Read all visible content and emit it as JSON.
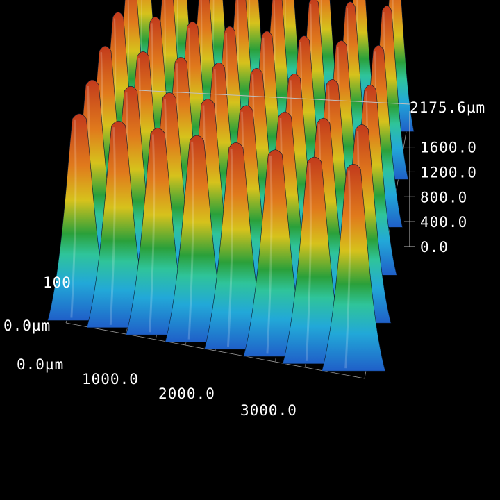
{
  "chart_data": {
    "type": "surface",
    "title": "",
    "z_axis": {
      "max_label": "2175.6µm",
      "ticks": [
        "1600.0",
        "1200.0",
        "800.0",
        "400.0",
        "0.0"
      ],
      "tick_values": [
        1600,
        1200,
        800,
        400,
        0
      ],
      "range": [
        0,
        2175.6
      ]
    },
    "x_axis": {
      "ticks": [
        "1000.0",
        "2000.0",
        "3000.0"
      ],
      "tick_values": [
        1000,
        2000,
        3000
      ],
      "origin_label": "0.0µm"
    },
    "y_axis": {
      "origin_label": "0.0µm",
      "partial_label": "100"
    },
    "peak_grid": {
      "rows": 6,
      "cols": 8,
      "peak_height": 2175.6,
      "base_height": 0
    },
    "colormap": [
      "#1f6fd0",
      "#22b6d8",
      "#2fc49a",
      "#3aa83a",
      "#d6c21c",
      "#e07a1c",
      "#c8381c"
    ],
    "grid": true
  }
}
